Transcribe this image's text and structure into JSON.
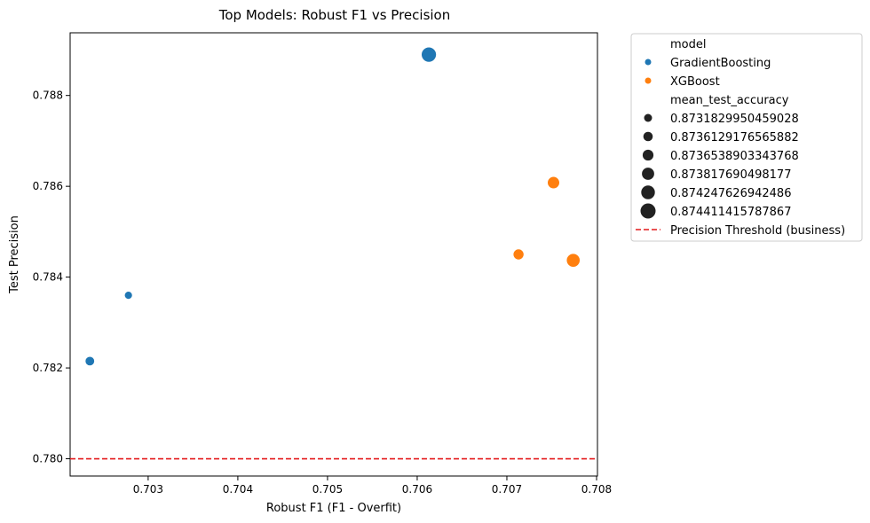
{
  "chart_data": {
    "type": "scatter",
    "title": "Top Models: Robust F1 vs Precision",
    "xlabel": "Robust F1 (F1 - Overfit)",
    "ylabel": "Test Precision",
    "xlim": [
      0.70213,
      0.70801
    ],
    "ylim": [
      0.77962,
      0.78938
    ],
    "xticks": [
      0.703,
      0.704,
      0.705,
      0.706,
      0.707,
      0.708
    ],
    "xtick_labels": [
      "0.703",
      "0.704",
      "0.705",
      "0.706",
      "0.707",
      "0.708"
    ],
    "yticks": [
      0.78,
      0.782,
      0.784,
      0.786,
      0.788
    ],
    "ytick_labels": [
      "0.780",
      "0.782",
      "0.784",
      "0.786",
      "0.788"
    ],
    "grid": false,
    "legend_placement": "outside-upper-right",
    "series": [
      {
        "name": "GradientBoosting",
        "color": "#1f77b4",
        "points": [
          {
            "x": 0.70613,
            "y": 0.7889,
            "mean_test_accuracy": 0.874411415787867
          },
          {
            "x": 0.70278,
            "y": 0.7836,
            "mean_test_accuracy": 0.8731829950459028
          },
          {
            "x": 0.70235,
            "y": 0.78215,
            "mean_test_accuracy": 0.8736129176565882
          }
        ]
      },
      {
        "name": "XGBoost",
        "color": "#ff7f0e",
        "points": [
          {
            "x": 0.70752,
            "y": 0.78608,
            "mean_test_accuracy": 0.873817690498177
          },
          {
            "x": 0.70713,
            "y": 0.7845,
            "mean_test_accuracy": 0.8736538903343768
          },
          {
            "x": 0.70774,
            "y": 0.78437,
            "mean_test_accuracy": 0.874247626942486
          }
        ]
      }
    ],
    "threshold": {
      "y": 0.78,
      "label": "Precision Threshold (business)",
      "color": "#e41a1c",
      "style": "dashed"
    },
    "legend": {
      "hue_title": "model",
      "size_title": "mean_test_accuracy",
      "size_entries": [
        "0.8731829950459028",
        "0.8736129176565882",
        "0.8736538903343768",
        "0.873817690498177",
        "0.874247626942486",
        "0.874411415787867"
      ]
    }
  }
}
